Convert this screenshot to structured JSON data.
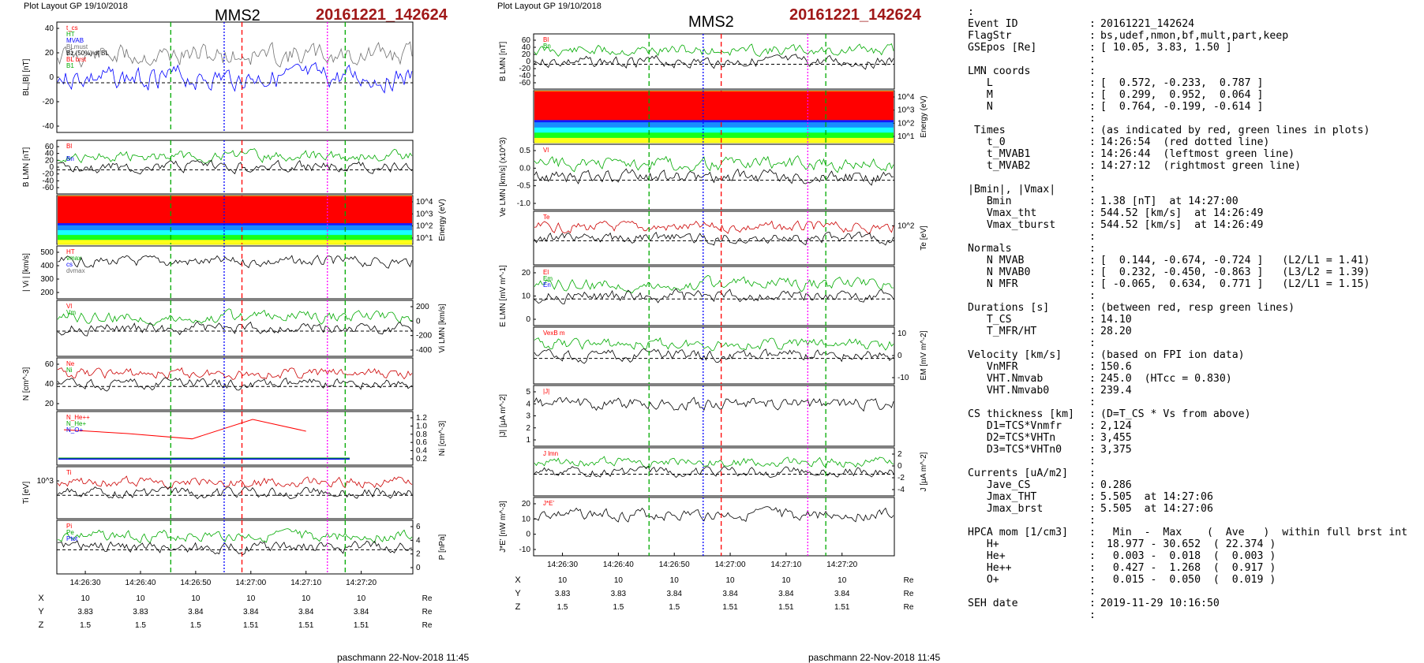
{
  "left_figure": {
    "header": "Plot Layout GP 19/10/2018",
    "spacecraft": "MMS2",
    "event": "20161221_142624",
    "time_ticks": [
      "14:26:30",
      "14:26:40",
      "14:26:50",
      "14:27:00",
      "14:27:10",
      "14:27:20"
    ],
    "ephem_labels": [
      "X",
      "Y",
      "Z"
    ],
    "ephem_values": [
      [
        "10",
        "10",
        "10",
        "10",
        "10",
        "10"
      ],
      [
        "3.83",
        "3.83",
        "3.84",
        "3.84",
        "3.84",
        "3.84"
      ],
      [
        "1.5",
        "1.5",
        "1.5",
        "1.51",
        "1.51",
        "1.51"
      ]
    ],
    "ephem_unit": "Re",
    "footer": "paschmann 22-Nov-2018 11:45",
    "panels": [
      {
        "ylabel": "BL,|B| [nT]",
        "ticks": [
          "40",
          "20",
          "0",
          "-20",
          "-40"
        ],
        "legend": [
          "t_cs",
          "HT",
          "MVAB",
          "BLmust",
          "Bz (50%) of BL",
          "BL brst",
          "B1"
        ]
      },
      {
        "ylabel": "B LMN [nT]",
        "ticks": [
          "60",
          "40",
          "20",
          "0",
          "-20",
          "-40",
          "-60"
        ],
        "legend": [
          "Bl",
          "",
          "Bn"
        ]
      },
      {
        "ylabel": "Energy (eV)",
        "ticks": [
          "10^4",
          "10^3",
          "10^2",
          "10^1"
        ],
        "legend": []
      },
      {
        "ylabel": "| Vi | [km/s]",
        "ticks": [
          "500",
          "400",
          "300",
          "200"
        ],
        "legend": [
          "HT",
          "vmax",
          "cs",
          "dvmax"
        ]
      },
      {
        "ylabel": "Vi LMN [km/s]",
        "ticks": [
          "200",
          "0",
          "-200",
          "-400"
        ],
        "legend": [
          "Vl",
          "Vm"
        ]
      },
      {
        "ylabel": "N [cm^-3]",
        "ticks": [
          "60",
          "40",
          "20"
        ],
        "legend": [
          "Ne",
          "Ni"
        ]
      },
      {
        "ylabel": "Ni [cm^-3]",
        "ticks": [
          "1.2",
          "1.0",
          "0.8",
          "0.6",
          "0.4",
          "0.2"
        ],
        "legend": [
          "N_He++",
          "N_He+",
          "N_O+"
        ]
      },
      {
        "ylabel": "Ti [eV]",
        "ticks": [
          "10^3"
        ],
        "legend": [
          "Ti"
        ]
      },
      {
        "ylabel": "P [nPa]",
        "ticks": [
          "6",
          "4",
          "2",
          "0"
        ],
        "legend": [
          "Pi",
          "Pe",
          "Ptot"
        ]
      }
    ]
  },
  "right_figure": {
    "header": "Plot Layout GP 19/10/2018",
    "spacecraft": "MMS2",
    "event": "20161221_142624",
    "time_ticks": [
      "14:26:30",
      "14:26:40",
      "14:26:50",
      "14:27:00",
      "14:27:10",
      "14:27:20"
    ],
    "ephem_labels": [
      "X",
      "Y",
      "Z"
    ],
    "ephem_values": [
      [
        "10",
        "10",
        "10",
        "10",
        "10",
        "10"
      ],
      [
        "3.83",
        "3.83",
        "3.84",
        "3.84",
        "3.84",
        "3.84"
      ],
      [
        "1.5",
        "1.5",
        "1.5",
        "1.51",
        "1.51",
        "1.51"
      ]
    ],
    "ephem_unit": "Re",
    "footer": "paschmann 22-Nov-2018 11:45",
    "panels": [
      {
        "ylabel": "B LMN [nT]",
        "ticks": [
          "60",
          "40",
          "20",
          "0",
          "-20",
          "-40",
          "-60"
        ],
        "legend": [
          "Bl",
          "Bn"
        ]
      },
      {
        "ylabel": "Energy (eV)",
        "ticks": [
          "10^4",
          "10^3",
          "10^2",
          "10^1"
        ],
        "legend": []
      },
      {
        "ylabel": "Ve LMN [km/s] (x10^3)",
        "ticks": [
          "0.5",
          "0.0",
          "-0.5",
          "-1.0"
        ],
        "legend": [
          "Vl"
        ]
      },
      {
        "ylabel": "Te [eV]",
        "ticks": [
          "10^2"
        ],
        "legend": [
          "Te"
        ]
      },
      {
        "ylabel": "E LMN [mV m^-1]",
        "ticks": [
          "20",
          "10",
          "0"
        ],
        "legend": [
          "El",
          "Em",
          "En"
        ]
      },
      {
        "ylabel": "EM [mV m^-2]",
        "ticks": [
          "10",
          "0",
          "-10"
        ],
        "legend": [
          "VexB m"
        ]
      },
      {
        "ylabel": "|J| [μA m^-2]",
        "ticks": [
          "5",
          "4",
          "3",
          "2",
          "1"
        ],
        "legend": [
          "|J|"
        ]
      },
      {
        "ylabel": "J [μA m^-2]",
        "ticks": [
          "2",
          "0",
          "-2",
          "-4"
        ],
        "legend": [
          "J lmn"
        ]
      },
      {
        "ylabel": "J*E' [nW m^-3]",
        "ticks": [
          "20",
          "10",
          "0",
          "-10"
        ],
        "legend": [
          "J*E'"
        ]
      }
    ]
  },
  "chart_data": [
    {
      "type": "line",
      "title": "MMS2",
      "subtitle": "20161221_142624",
      "x_ticks": [
        "14:26:30",
        "14:26:40",
        "14:26:50",
        "14:27:00",
        "14:27:10",
        "14:27:20"
      ],
      "markers": {
        "t_0": "14:26:54",
        "t_MVAB1": "14:26:44",
        "t_MVAB2": "14:27:12"
      },
      "panel_ylabels": [
        "BL,|B| [nT]",
        "B LMN [nT]",
        "Energy (eV)",
        "| Vi | [km/s]",
        "Vi LMN [km/s]",
        "N [cm^-3]",
        "Ni [cm^-3]",
        "Ti [eV]",
        "P [nPa]"
      ],
      "ephemeris": {
        "X": [
          10,
          10,
          10,
          10,
          10,
          10
        ],
        "Y": [
          3.83,
          3.83,
          3.84,
          3.84,
          3.84,
          3.84
        ],
        "Z": [
          1.5,
          1.5,
          1.5,
          1.51,
          1.51,
          1.51
        ]
      }
    },
    {
      "type": "line",
      "title": "MMS2",
      "subtitle": "20161221_142624",
      "x_ticks": [
        "14:26:30",
        "14:26:40",
        "14:26:50",
        "14:27:00",
        "14:27:10",
        "14:27:20"
      ],
      "panel_ylabels": [
        "B LMN [nT]",
        "Energy (eV)",
        "Ve LMN [km/s]",
        "Te [eV]",
        "E LMN [mV m^-1]",
        "EM [mV m^-2]",
        "|J| [μA m^-2]",
        "J [μA m^-2]",
        "J*E' [nW m^-3]"
      ],
      "ephemeris": {
        "X": [
          10,
          10,
          10,
          10,
          10,
          10
        ],
        "Y": [
          3.83,
          3.83,
          3.84,
          3.84,
          3.84,
          3.84
        ],
        "Z": [
          1.5,
          1.5,
          1.5,
          1.51,
          1.51,
          1.51
        ]
      }
    }
  ],
  "summary": {
    "rows": [
      [
        ":",
        "",
        ""
      ],
      [
        "Event ID",
        ":",
        "20161221_142624"
      ],
      [
        "FlagStr",
        ":",
        "bs,udef,nmon,bf,mult,part,keep"
      ],
      [
        "GSEpos [Re]",
        ":",
        "[ 10.05, 3.83, 1.50 ]"
      ],
      [
        "",
        ":",
        ""
      ],
      [
        "LMN coords",
        ":",
        ""
      ],
      [
        "   L",
        ":",
        "[  0.572, -0.233,  0.787 ]"
      ],
      [
        "   M",
        ":",
        "[  0.299,  0.952,  0.064 ]"
      ],
      [
        "   N",
        ":",
        "[  0.764, -0.199, -0.614 ]"
      ],
      [
        "",
        ":",
        ""
      ],
      [
        " Times",
        ":",
        "(as indicated by red, green lines in plots)"
      ],
      [
        "   t_0",
        ":",
        "14:26:54  (red dotted line)"
      ],
      [
        "   t_MVAB1",
        ":",
        "14:26:44  (leftmost green line)"
      ],
      [
        "   t_MVAB2",
        ":",
        "14:27:12  (rightmost green line)"
      ],
      [
        "",
        ":",
        ""
      ],
      [
        "|Bmin|, |Vmax|",
        ":",
        ""
      ],
      [
        "   Bmin",
        ":",
        "1.38 [nT]  at 14:27:00"
      ],
      [
        "   Vmax_tht",
        ":",
        "544.52 [km/s]  at 14:26:49"
      ],
      [
        "   Vmax_tburst",
        ":",
        "544.52 [km/s]  at 14:26:49"
      ],
      [
        "",
        ":",
        ""
      ],
      [
        "Normals",
        ":",
        ""
      ],
      [
        "   N MVAB",
        ":",
        "[  0.144, -0.674, -0.724 ]   (L2/L1 = 1.41)"
      ],
      [
        "   N MVAB0",
        ":",
        "[  0.232, -0.450, -0.863 ]   (L3/L2 = 1.39)"
      ],
      [
        "   N MFR",
        ":",
        "[ -0.065,  0.634,  0.771 ]   (L2/L1 = 1.15)"
      ],
      [
        "",
        ":",
        ""
      ],
      [
        "Durations [s]",
        ":",
        "(between red, resp green lines)"
      ],
      [
        "   T_CS",
        ":",
        "14.10"
      ],
      [
        "   T_MFR/HT",
        ":",
        "28.20"
      ],
      [
        "",
        ":",
        ""
      ],
      [
        "Velocity [km/s]",
        ":",
        "(based on FPI ion data)"
      ],
      [
        "   VnMFR",
        ":",
        "150.6"
      ],
      [
        "   VHT.Nmvab",
        ":",
        "245.0  (HTcc = 0.830)"
      ],
      [
        "   VHT.Nmvab0",
        ":",
        "239.4"
      ],
      [
        "",
        ":",
        ""
      ],
      [
        "CS thickness [km]",
        ":",
        "(D=T_CS * Vs from above)"
      ],
      [
        "   D1=TCS*Vnmfr",
        ":",
        "2,124"
      ],
      [
        "   D2=TCS*VHTn",
        ":",
        "3,455"
      ],
      [
        "   D3=TCS*VHTn0",
        ":",
        "3,375"
      ],
      [
        "",
        ":",
        ""
      ],
      [
        "Currents [uA/m2]",
        ":",
        ""
      ],
      [
        "   Jave_CS",
        ":",
        "0.286"
      ],
      [
        "   Jmax_THT",
        ":",
        "5.505  at 14:27:06"
      ],
      [
        "   Jmax_brst",
        ":",
        "5.505  at 14:27:06"
      ],
      [
        "",
        ":",
        ""
      ],
      [
        "HPCA mom [1/cm3]",
        ":",
        "  Min  -  Max    (  Ave   )  within full brst int"
      ],
      [
        "   H+",
        ":",
        " 18.977 - 30.652  ( 22.374 )"
      ],
      [
        "   He+",
        ":",
        "  0.003 -  0.018  (  0.003 )"
      ],
      [
        "   He++",
        ":",
        "  0.427 -  1.268  (  0.917 )"
      ],
      [
        "   O+",
        ":",
        "  0.015 -  0.050  (  0.019 )"
      ],
      [
        "",
        ":",
        ""
      ],
      [
        "SEH date",
        ":",
        "2019-11-29 10:16:50"
      ],
      [
        "",
        ":",
        ""
      ]
    ]
  }
}
